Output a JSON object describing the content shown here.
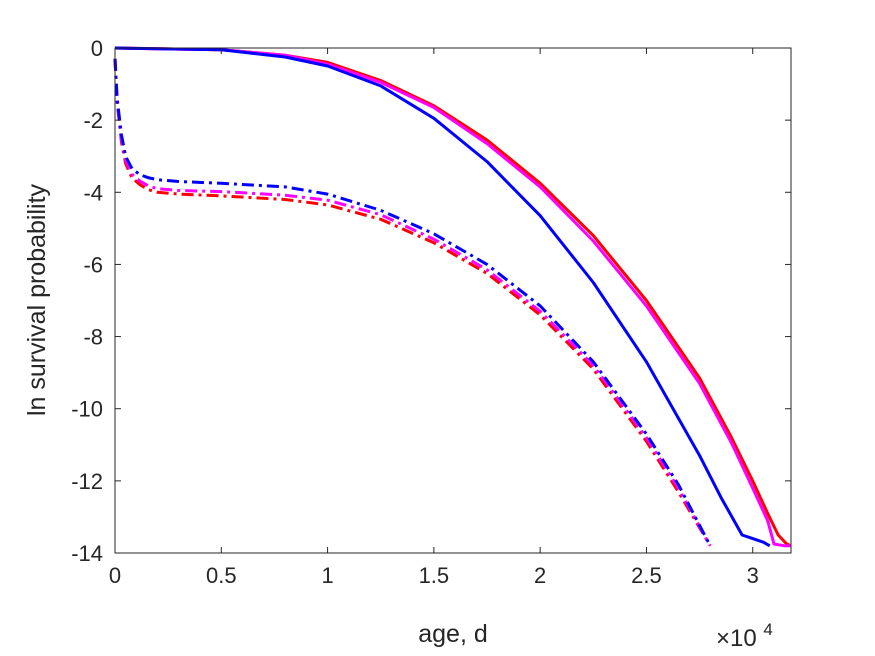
{
  "chart_data": {
    "type": "line",
    "title": "",
    "xlabel": "age, d",
    "ylabel": "ln survival probability",
    "x_exponent_label": {
      "base": "×10",
      "exp": "4"
    },
    "xlim": [
      0,
      31800
    ],
    "ylim": [
      -14,
      0
    ],
    "x_ticks": [
      0,
      5000,
      10000,
      15000,
      20000,
      25000,
      30000
    ],
    "x_tick_labels": [
      "0",
      "0.5",
      "1",
      "1.5",
      "2",
      "2.5",
      "3"
    ],
    "y_ticks": [
      0,
      -2,
      -4,
      -6,
      -8,
      -10,
      -12,
      -14
    ],
    "y_tick_labels": [
      "0",
      "-2",
      "-4",
      "-6",
      "-8",
      "-10",
      "-12",
      "-14"
    ],
    "grid": false,
    "legend": "none",
    "series": [
      {
        "color": "#ff0000",
        "style": "solid",
        "x": [
          0,
          5000,
          8000,
          10000,
          12500,
          15000,
          17500,
          20000,
          22500,
          25000,
          27500,
          29000,
          30000,
          30700,
          31200,
          31600,
          31800
        ],
        "y": [
          0,
          -0.05,
          -0.2,
          -0.4,
          -0.9,
          -1.6,
          -2.55,
          -3.75,
          -5.2,
          -7.0,
          -9.15,
          -10.8,
          -12.0,
          -12.9,
          -13.5,
          -13.75,
          -13.8
        ]
      },
      {
        "color": "#ff00ff",
        "style": "solid",
        "x": [
          0,
          5000,
          8000,
          10000,
          12500,
          15000,
          17500,
          20000,
          22500,
          25000,
          27500,
          29000,
          30000,
          30700,
          31000,
          31500,
          31800
        ],
        "y": [
          0,
          -0.05,
          -0.2,
          -0.45,
          -0.95,
          -1.65,
          -2.65,
          -3.85,
          -5.35,
          -7.15,
          -9.3,
          -10.95,
          -12.2,
          -13.1,
          -13.75,
          -13.8,
          -13.8
        ]
      },
      {
        "color": "#0000ff",
        "style": "solid",
        "x": [
          0,
          5000,
          8000,
          10000,
          12500,
          15000,
          17500,
          20000,
          22500,
          25000,
          27500,
          28500,
          29500,
          30000,
          30500,
          30800
        ],
        "y": [
          0,
          -0.05,
          -0.25,
          -0.5,
          -1.05,
          -1.95,
          -3.15,
          -4.65,
          -6.5,
          -8.7,
          -11.3,
          -12.45,
          -13.5,
          -13.6,
          -13.7,
          -13.8
        ]
      },
      {
        "color": "#ff0000",
        "style": "dashdot",
        "x": [
          0,
          100,
          300,
          500,
          800,
          1200,
          1600,
          2000,
          3000,
          5000,
          8000,
          10000,
          12500,
          15000,
          17500,
          20000,
          22500,
          25000,
          26500,
          28000
        ],
        "y": [
          -0.3,
          -1.5,
          -2.6,
          -3.2,
          -3.6,
          -3.8,
          -3.93,
          -4.0,
          -4.05,
          -4.1,
          -4.2,
          -4.35,
          -4.75,
          -5.4,
          -6.25,
          -7.4,
          -8.9,
          -10.9,
          -12.3,
          -13.8
        ]
      },
      {
        "color": "#ff00ff",
        "style": "dashdot",
        "x": [
          0,
          100,
          300,
          500,
          800,
          1200,
          1600,
          2000,
          3000,
          5000,
          8000,
          10000,
          12500,
          15000,
          17500,
          20000,
          22500,
          25000,
          26500,
          28000
        ],
        "y": [
          -0.3,
          -1.45,
          -2.5,
          -3.1,
          -3.5,
          -3.7,
          -3.83,
          -3.9,
          -3.95,
          -3.98,
          -4.08,
          -4.22,
          -4.62,
          -5.3,
          -6.15,
          -7.3,
          -8.8,
          -10.8,
          -12.2,
          -13.8
        ]
      },
      {
        "color": "#0000ff",
        "style": "dashdot",
        "x": [
          0,
          100,
          300,
          500,
          800,
          1200,
          1600,
          2000,
          3000,
          5000,
          8000,
          10000,
          12500,
          15000,
          17500,
          20000,
          22500,
          25000,
          26500,
          28000
        ],
        "y": [
          -0.3,
          -1.4,
          -2.4,
          -3.0,
          -3.35,
          -3.52,
          -3.6,
          -3.65,
          -3.7,
          -3.75,
          -3.85,
          -4.05,
          -4.5,
          -5.15,
          -6.0,
          -7.15,
          -8.7,
          -10.7,
          -12.1,
          -13.8
        ]
      }
    ]
  }
}
